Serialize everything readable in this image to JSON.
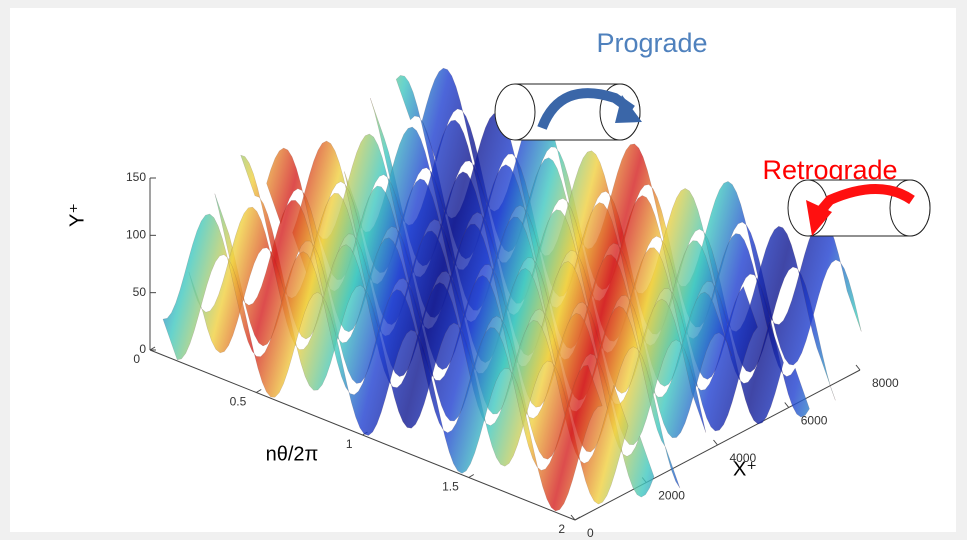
{
  "chart_data": {
    "type": "surface3d",
    "ylabel": "Y⁺",
    "zlabel": "nθ/2π",
    "xlabel": "X⁺",
    "ylim": [
      0,
      150
    ],
    "yticks": [
      0,
      50,
      100,
      150
    ],
    "zlim": [
      0,
      2
    ],
    "zticks": [
      0,
      0.5,
      1,
      1.5,
      2
    ],
    "xlim": [
      0,
      8000
    ],
    "xticks": [
      0,
      2000,
      4000,
      6000,
      8000
    ],
    "annotations": [
      {
        "text": "Prograde",
        "color": "#4f81bd"
      },
      {
        "text": "Retrograde",
        "color": "#ff0000"
      }
    ]
  }
}
